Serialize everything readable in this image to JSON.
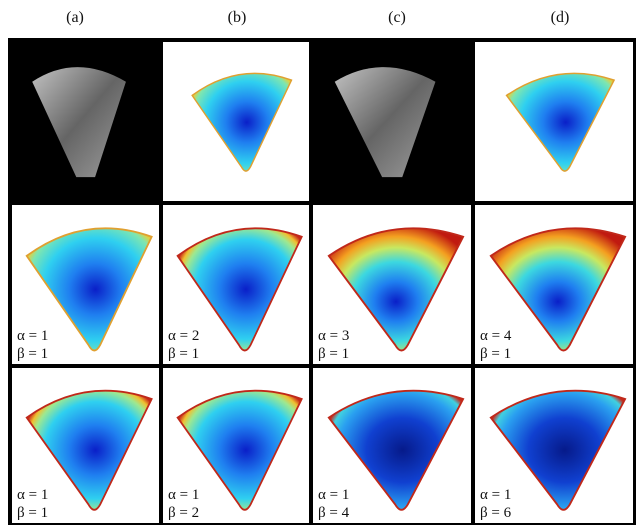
{
  "columns": [
    "(a)",
    "(b)",
    "(c)",
    "(d)"
  ],
  "parameter_rows": [
    [
      {
        "alpha": "α = 1",
        "beta": "β = 1"
      },
      {
        "alpha": "α = 2",
        "beta": "β = 1"
      },
      {
        "alpha": "α = 3",
        "beta": "β = 1"
      },
      {
        "alpha": "α = 4",
        "beta": "β = 1"
      }
    ],
    [
      {
        "alpha": "α = 1",
        "beta": "β = 1"
      },
      {
        "alpha": "α = 1",
        "beta": "β = 2"
      },
      {
        "alpha": "α = 1",
        "beta": "β = 4"
      },
      {
        "alpha": "α = 1",
        "beta": "β = 6"
      }
    ]
  ]
}
